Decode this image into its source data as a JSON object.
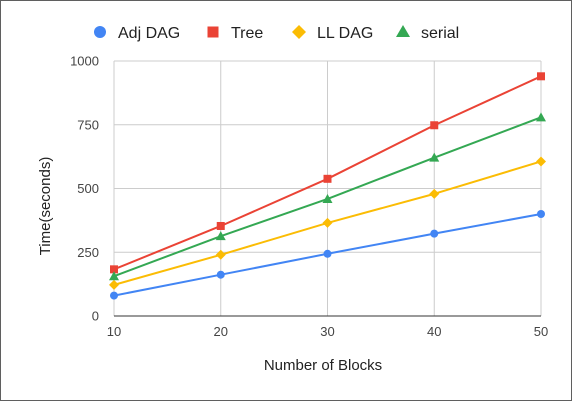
{
  "chart_data": {
    "type": "line",
    "title": "",
    "xlabel": "Number of Blocks",
    "ylabel": "Time(seconds)",
    "x": [
      10,
      20,
      30,
      40,
      50
    ],
    "x_ticks": [
      "10",
      "20",
      "30",
      "40",
      "50"
    ],
    "ylim": [
      0,
      1000
    ],
    "y_ticks": [
      "0",
      "250",
      "500",
      "750",
      "1000"
    ],
    "grid": "vertical and horizontal gridlines",
    "legend_position": "top",
    "series": [
      {
        "name": "Adj DAG",
        "values": [
          80,
          162,
          244,
          323,
          400
        ],
        "color": "#4285f4",
        "marker": "circle"
      },
      {
        "name": "Tree",
        "values": [
          183,
          353,
          538,
          748,
          940
        ],
        "color": "#ea4335",
        "marker": "square"
      },
      {
        "name": "LL DAG",
        "values": [
          122,
          240,
          365,
          479,
          606
        ],
        "color": "#fbbc04",
        "marker": "diamond"
      },
      {
        "name": "serial",
        "values": [
          156,
          313,
          459,
          621,
          779
        ],
        "color": "#34a853",
        "marker": "triangle"
      }
    ]
  }
}
